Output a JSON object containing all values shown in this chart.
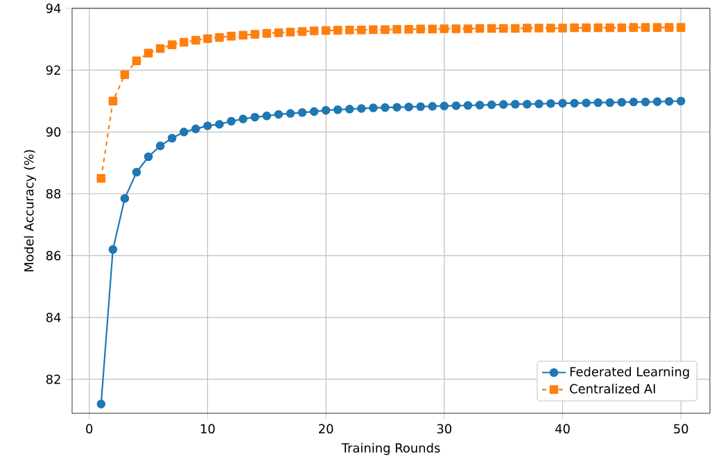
{
  "chart_data": {
    "type": "line",
    "xlabel": "Training Rounds",
    "ylabel": "Model Accuracy (%)",
    "x": [
      1,
      2,
      3,
      4,
      5,
      6,
      7,
      8,
      9,
      10,
      11,
      12,
      13,
      14,
      15,
      16,
      17,
      18,
      19,
      20,
      21,
      22,
      23,
      24,
      25,
      26,
      27,
      28,
      29,
      30,
      31,
      32,
      33,
      34,
      35,
      36,
      37,
      38,
      39,
      40,
      41,
      42,
      43,
      44,
      45,
      46,
      47,
      48,
      49,
      50
    ],
    "series": [
      {
        "name": "Federated Learning",
        "color": "#1f77b4",
        "marker": "circle",
        "line_style": "solid",
        "values": [
          81.2,
          86.2,
          87.85,
          88.7,
          89.2,
          89.55,
          89.8,
          90.0,
          90.1,
          90.2,
          90.25,
          90.35,
          90.42,
          90.48,
          90.52,
          90.57,
          90.6,
          90.63,
          90.66,
          90.7,
          90.72,
          90.74,
          90.76,
          90.78,
          90.79,
          90.8,
          90.81,
          90.82,
          90.83,
          90.84,
          90.85,
          90.86,
          90.87,
          90.88,
          90.89,
          90.9,
          90.9,
          90.91,
          90.92,
          90.93,
          90.93,
          90.94,
          90.95,
          90.95,
          90.96,
          90.97,
          90.97,
          90.98,
          90.99,
          91.0
        ]
      },
      {
        "name": "Centralized AI",
        "color": "#ff7f0e",
        "marker": "square",
        "line_style": "dashed",
        "values": [
          88.5,
          91.0,
          91.85,
          92.3,
          92.55,
          92.7,
          92.82,
          92.9,
          92.97,
          93.02,
          93.06,
          93.1,
          93.13,
          93.16,
          93.19,
          93.21,
          93.23,
          93.25,
          93.27,
          93.28,
          93.29,
          93.3,
          93.3,
          93.31,
          93.31,
          93.32,
          93.32,
          93.33,
          93.33,
          93.34,
          93.34,
          93.34,
          93.35,
          93.35,
          93.35,
          93.35,
          93.36,
          93.36,
          93.36,
          93.36,
          93.37,
          93.37,
          93.37,
          93.37,
          93.37,
          93.38,
          93.38,
          93.38,
          93.38,
          93.38
        ]
      }
    ],
    "xlim": [
      -1.45,
      52.45
    ],
    "ylim": [
      80.9,
      94
    ],
    "xticks": [
      0,
      10,
      20,
      30,
      40,
      50
    ],
    "yticks": [
      82,
      84,
      86,
      88,
      90,
      92,
      94
    ],
    "grid": true,
    "legend": "bottom right"
  }
}
